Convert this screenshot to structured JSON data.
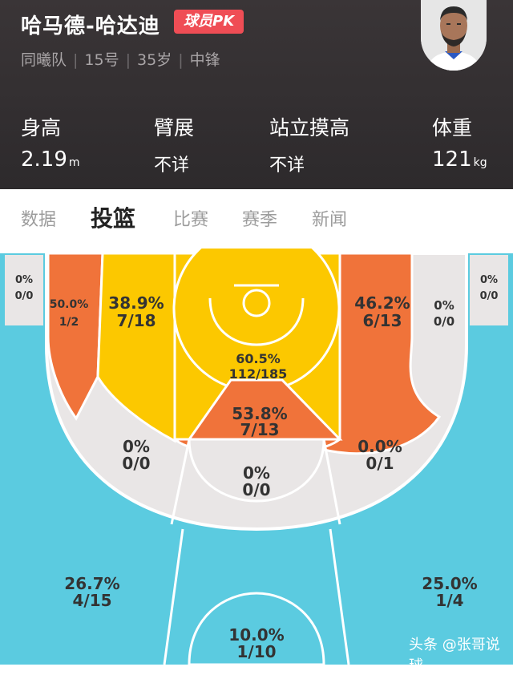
{
  "player": {
    "name": "哈马德-哈达迪",
    "pk_label": "球员PK",
    "team": "同曦队",
    "number": "15号",
    "age": "35岁",
    "position": "中锋"
  },
  "stats": {
    "height": {
      "label": "身高",
      "value": "2.19",
      "unit": "m"
    },
    "wingspan": {
      "label": "臂展",
      "value": "不详"
    },
    "reach": {
      "label": "站立摸高",
      "value": "不详"
    },
    "weight": {
      "label": "体重",
      "value": "121",
      "unit": "kg"
    }
  },
  "tabs": [
    "数据",
    "投篮",
    "比赛",
    "赛季",
    "新闻"
  ],
  "active_tab": "投篮",
  "colors": {
    "cold": "#5bcbe0",
    "neutral": "#e9e6e6",
    "warm": "#f0733a",
    "hot": "#fcc800",
    "header_bg": "#332f31",
    "badge": "#ef4d55"
  },
  "zones": {
    "left_corner3": {
      "pct": "0%",
      "frac": "0/0"
    },
    "right_corner3": {
      "pct": "0%",
      "frac": "0/0"
    },
    "left_baseline_mid": {
      "pct": "50.0%",
      "frac": "1/2"
    },
    "left_mid_upper": {
      "pct": "38.9%",
      "frac": "7/18"
    },
    "restricted": {
      "pct": "60.5%",
      "frac": "112/185"
    },
    "right_mid_upper": {
      "pct": "46.2%",
      "frac": "6/13"
    },
    "right_short_corner": {
      "pct": "0%",
      "frac": "0/0"
    },
    "paint": {
      "pct": "53.8%",
      "frac": "7/13"
    },
    "left_elbow": {
      "pct": "0%",
      "frac": "0/0"
    },
    "right_elbow": {
      "pct": "0.0%",
      "frac": "0/1"
    },
    "top_key": {
      "pct": "0%",
      "frac": "0/0"
    },
    "left_wing3": {
      "pct": "26.7%",
      "frac": "4/15"
    },
    "right_wing3": {
      "pct": "25.0%",
      "frac": "1/4"
    },
    "top3": {
      "pct": "10.0%",
      "frac": "1/10"
    }
  },
  "watermark": "头条 @张哥说球"
}
